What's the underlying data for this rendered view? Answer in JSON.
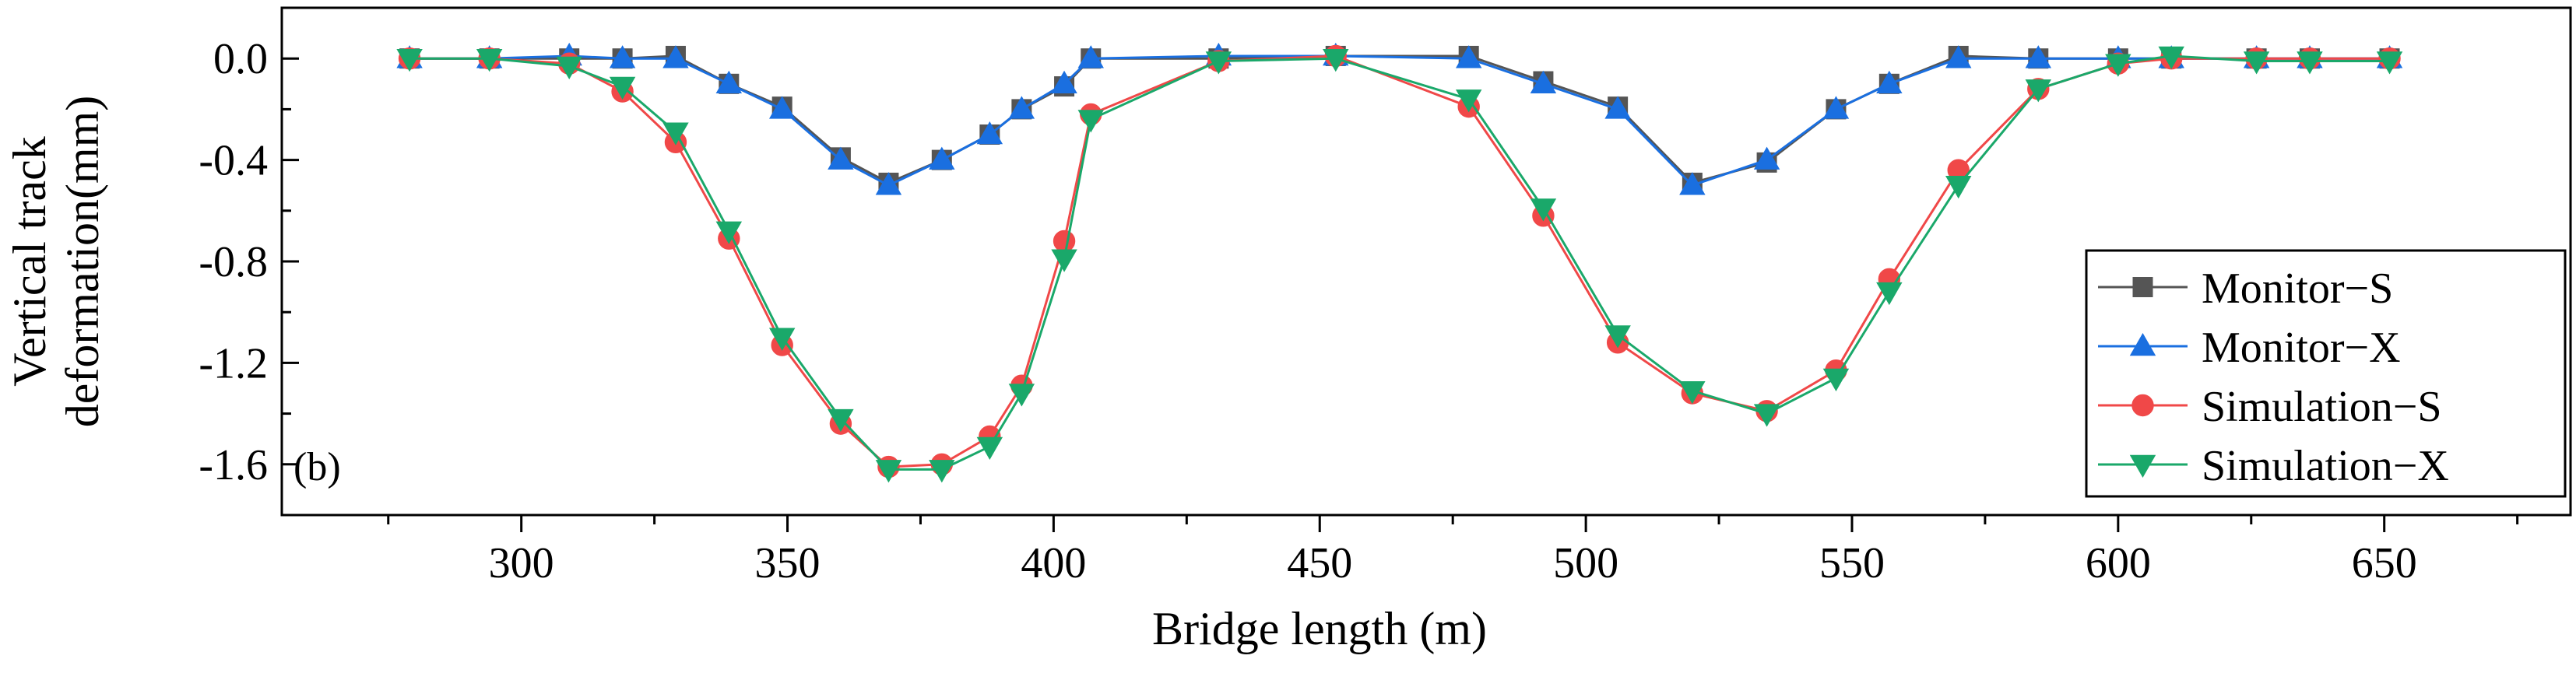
{
  "chart_data": {
    "type": "line",
    "panel_label": "(b)",
    "xlabel": "Bridge length (m)",
    "ylabel": [
      "Vertical track",
      "deformation(mm)"
    ],
    "xlim": [
      255,
      685
    ],
    "ylim": [
      -1.8,
      0.2
    ],
    "xticks": [
      300,
      350,
      400,
      450,
      500,
      550,
      600,
      650
    ],
    "xtick_labels": [
      "300",
      "350",
      "400",
      "450",
      "500",
      "550",
      "600",
      "650"
    ],
    "yticks": [
      0.0,
      -0.4,
      -0.8,
      -1.2,
      -1.6
    ],
    "ytick_labels": [
      "0.0",
      "-0.4",
      "-0.8",
      "-1.2",
      "-1.6"
    ],
    "legend_position": "bottom-right",
    "series": [
      {
        "name": "Monitor−S",
        "color": "#555555",
        "marker": "square",
        "x": [
          279,
          294,
          309,
          319,
          329,
          339,
          349,
          360,
          369,
          379,
          388,
          394,
          402,
          407,
          431,
          453,
          478,
          492,
          506,
          520,
          534,
          547,
          557,
          570,
          585,
          600,
          610,
          626,
          636,
          651
        ],
        "y": [
          0.0,
          0.0,
          0.0,
          0.0,
          0.01,
          -0.1,
          -0.19,
          -0.39,
          -0.49,
          -0.4,
          -0.3,
          -0.2,
          -0.11,
          0.0,
          0.0,
          0.01,
          0.01,
          -0.09,
          -0.19,
          -0.49,
          -0.41,
          -0.2,
          -0.1,
          0.01,
          0.0,
          0.0,
          0.0,
          0.0,
          0.0,
          0.0
        ]
      },
      {
        "name": "Monitor−X",
        "color": "#1a6fe0",
        "marker": "triangle-up",
        "x": [
          279,
          294,
          309,
          319,
          329,
          339,
          349,
          360,
          369,
          379,
          388,
          394,
          402,
          407,
          431,
          453,
          478,
          492,
          506,
          520,
          534,
          547,
          557,
          570,
          585,
          600,
          610,
          626,
          636,
          651
        ],
        "y": [
          0.0,
          0.0,
          0.01,
          0.0,
          0.0,
          -0.1,
          -0.2,
          -0.4,
          -0.5,
          -0.4,
          -0.3,
          -0.2,
          -0.1,
          0.0,
          0.01,
          0.01,
          0.0,
          -0.1,
          -0.2,
          -0.5,
          -0.4,
          -0.2,
          -0.1,
          0.0,
          0.0,
          0.0,
          0.0,
          0.0,
          0.0,
          0.0
        ]
      },
      {
        "name": "Simulation−S",
        "color": "#f04848",
        "marker": "circle",
        "x": [
          279,
          294,
          309,
          319,
          329,
          339,
          349,
          360,
          369,
          379,
          388,
          394,
          402,
          407,
          431,
          453,
          478,
          492,
          506,
          520,
          534,
          547,
          557,
          570,
          585,
          600,
          610,
          626,
          636,
          651
        ],
        "y": [
          0.0,
          0.0,
          -0.02,
          -0.13,
          -0.33,
          -0.71,
          -1.13,
          -1.44,
          -1.61,
          -1.6,
          -1.49,
          -1.29,
          -0.72,
          -0.22,
          -0.01,
          0.01,
          -0.19,
          -0.62,
          -1.12,
          -1.32,
          -1.39,
          -1.23,
          -0.87,
          -0.44,
          -0.12,
          -0.02,
          0.0,
          0.0,
          0.0,
          0.0
        ]
      },
      {
        "name": "Simulation−X",
        "color": "#1aa86a",
        "marker": "triangle-down",
        "x": [
          279,
          294,
          309,
          319,
          329,
          339,
          349,
          360,
          369,
          379,
          388,
          394,
          402,
          407,
          431,
          453,
          478,
          492,
          506,
          520,
          534,
          547,
          557,
          570,
          585,
          600,
          610,
          626,
          636,
          651
        ],
        "y": [
          0.0,
          0.0,
          -0.03,
          -0.11,
          -0.29,
          -0.68,
          -1.1,
          -1.42,
          -1.62,
          -1.62,
          -1.53,
          -1.32,
          -0.79,
          -0.24,
          -0.01,
          0.0,
          -0.16,
          -0.59,
          -1.09,
          -1.31,
          -1.4,
          -1.26,
          -0.92,
          -0.5,
          -0.12,
          -0.02,
          0.01,
          -0.01,
          -0.01,
          -0.01
        ]
      }
    ]
  }
}
